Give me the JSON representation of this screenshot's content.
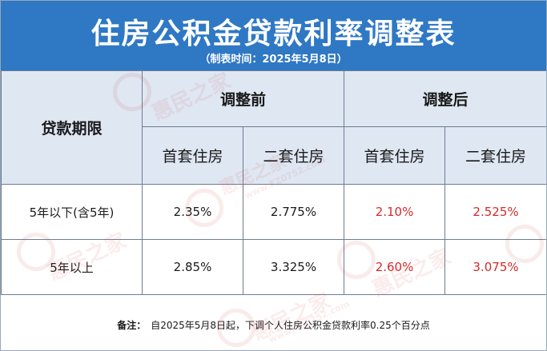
{
  "title": "住房公积金贷款利率调整表",
  "subtitle": "（制表时间：2025年5月8日）",
  "table": {
    "col_period": "贷款期限",
    "group_before": "调整前",
    "group_after": "调整后",
    "sub_first": "首套住房",
    "sub_second": "二套住房",
    "rows": [
      {
        "period": "5年以下(含5年)",
        "before_first": "2.35%",
        "before_second": "2.775%",
        "after_first": "2.10%",
        "after_second": "2.525%"
      },
      {
        "period": "5年以上",
        "before_first": "2.85%",
        "before_second": "3.325%",
        "after_first": "2.60%",
        "after_second": "3.075%"
      }
    ]
  },
  "note": {
    "label": "备注：",
    "text": "自2025年5月8日起，下调个人住房公积金贷款利率0.25个百分点"
  },
  "watermark": {
    "brand": "惠民之家",
    "site": "www.FZ0752.com"
  },
  "colors": {
    "header_band": "#2f78c4",
    "header_cells": "#dee7f2",
    "new_rate": "#d42a2a"
  }
}
